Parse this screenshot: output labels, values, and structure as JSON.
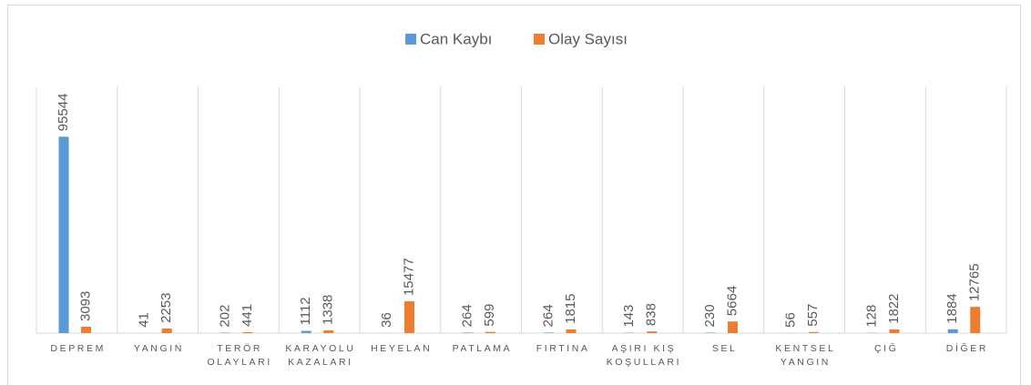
{
  "chart_data": {
    "type": "bar",
    "categories": [
      "DEPREM",
      "YANGIN",
      "TERÖR\nOLAYLARI",
      "KARAYOLU\nKAZALARI",
      "HEYELAN",
      "PATLAMA",
      "FIRTINA",
      "AŞIRI KIŞ\nKOŞULLARI",
      "SEL",
      "KENTSEL\nYANGIN",
      "ÇIĞ",
      "DİĞER"
    ],
    "series": [
      {
        "name": "Can Kaybı",
        "color": "#5b9bd5",
        "values": [
          95544,
          41,
          202,
          1112,
          36,
          264,
          264,
          143,
          230,
          56,
          128,
          1884
        ]
      },
      {
        "name": "Olay Sayısı",
        "color": "#ed7d31",
        "values": [
          3093,
          2253,
          441,
          1338,
          15477,
          599,
          1815,
          838,
          5664,
          557,
          1822,
          12765
        ]
      }
    ],
    "ylim": [
      0,
      120000
    ],
    "legend": "top",
    "grid": true
  }
}
